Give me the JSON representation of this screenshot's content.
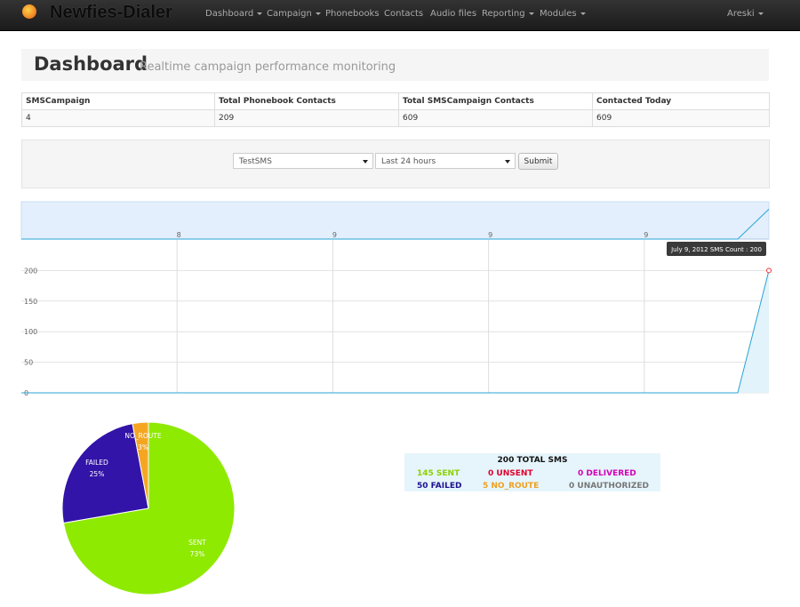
{
  "navbar": {
    "brand": "Newfies-Dialer",
    "menu": [
      "Dashboard",
      "Campaign",
      "Phonebooks",
      "Contacts",
      "Audio files",
      "Reporting",
      "Modules"
    ],
    "user": "Areski"
  },
  "header": {
    "title": "Dashboard",
    "subtitle": "Realtime campaign performance monitoring"
  },
  "table": {
    "headers": [
      "SMSCampaign",
      "Total Phonebook Contacts",
      "Total SMSCampaign Contacts",
      "Contacted Today"
    ],
    "rows": [
      [
        "4",
        "209",
        "609",
        "609"
      ]
    ]
  },
  "filter": {
    "campaign": "TestSMS",
    "period": "Last 24 hours",
    "submit": "Submit"
  },
  "chart_data": [
    {
      "type": "line",
      "x": [
        0,
        23,
        24
      ],
      "values": [
        0,
        0,
        200
      ],
      "color": "#29a3d6",
      "xlim": [
        0,
        24
      ],
      "xticks": [
        {
          "value": 5,
          "label": "8"
        },
        {
          "value": 10,
          "label": "9"
        },
        {
          "value": 15,
          "label": "9"
        },
        {
          "value": 20,
          "label": "9"
        }
      ],
      "ylim": [
        0,
        250
      ],
      "yticks": [
        0,
        50,
        100,
        150,
        200
      ],
      "grid": true,
      "annotation": "July 9, 2012 SMS Count : 200"
    },
    {
      "type": "pie",
      "categories": [
        "SENT",
        "FAILED",
        "NO_ROUTE"
      ],
      "values": [
        73,
        25,
        3
      ],
      "value_labels": [
        "73%",
        "25%",
        "3%"
      ],
      "colors": [
        "#8eea00",
        "#3214a8",
        "#f4a623"
      ]
    }
  ],
  "summary": {
    "title": "200 TOTAL SMS",
    "items": [
      {
        "text": "145 SENT",
        "color": "#8cd100"
      },
      {
        "text": "0 UNSENT",
        "color": "#e0002a"
      },
      {
        "text": "0 DELIVERED",
        "color": "#d400b8"
      },
      {
        "text": "50 FAILED",
        "color": "#1c1290"
      },
      {
        "text": "5 NO_ROUTE",
        "color": "#f0a020"
      },
      {
        "text": "0 UNAUTHORIZED",
        "color": "#777777"
      }
    ]
  }
}
